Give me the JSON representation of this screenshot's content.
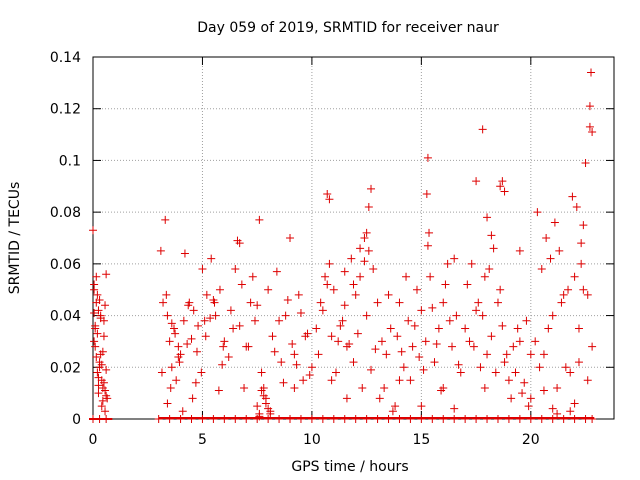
{
  "chart_data": {
    "type": "scatter",
    "title": "Day 059 of 2019, SRMTID for receiver naur",
    "xlabel": "GPS time / hours",
    "ylabel": "SRMTID / TECUs",
    "xlim": [
      0,
      23.8
    ],
    "ylim": [
      0,
      0.14
    ],
    "xticks": [
      0,
      5,
      10,
      15,
      20
    ],
    "xtick_labels": [
      "0",
      "5",
      "10",
      "15",
      "20"
    ],
    "yticks": [
      0,
      0.02,
      0.04,
      0.06,
      0.08,
      0.1,
      0.12,
      0.14
    ],
    "ytick_labels": [
      "0",
      "0.02",
      "0.04",
      "0.06",
      "0.08",
      "0.1",
      "0.12",
      "0.14"
    ],
    "grid": true,
    "marker": "+",
    "color": "#dd0000",
    "series": [
      {
        "name": "SRMTID",
        "x": [
          0.0,
          0.05,
          0.1,
          0.15,
          0.2,
          0.25,
          0.3,
          0.35,
          0.4,
          0.45,
          0.5,
          0.55,
          0.6,
          0.65,
          0.05,
          0.1,
          0.15,
          0.2,
          0.25,
          0.3,
          0.35,
          0.4,
          0.45,
          0.5,
          0.55,
          0.6,
          0.05,
          0.15,
          0.25,
          0.35,
          0.45,
          0.55,
          0.1,
          0.3,
          0.5,
          0.2,
          0.4,
          0.6,
          0.05,
          0.25,
          3.1,
          3.2,
          3.3,
          3.4,
          3.5,
          3.6,
          3.7,
          3.8,
          3.9,
          4.0,
          4.2,
          4.4,
          4.6,
          4.8,
          5.0,
          5.2,
          5.4,
          5.6,
          5.8,
          6.0,
          3.15,
          3.35,
          3.55,
          3.75,
          3.95,
          4.15,
          4.35,
          4.55,
          4.75,
          4.95,
          5.15,
          5.35,
          5.55,
          5.75,
          5.95,
          3.4,
          3.9,
          4.3,
          4.7,
          5.1,
          5.5,
          5.9,
          3.6,
          4.1,
          4.5,
          6.2,
          6.4,
          6.6,
          6.8,
          7.0,
          7.2,
          7.4,
          7.6,
          7.8,
          8.0,
          8.2,
          8.4,
          8.6,
          8.8,
          9.0,
          9.2,
          9.4,
          9.6,
          9.8,
          10.0,
          6.3,
          6.5,
          6.7,
          6.9,
          7.1,
          7.3,
          7.5,
          7.7,
          7.9,
          8.1,
          8.3,
          8.5,
          8.7,
          8.9,
          9.1,
          9.3,
          9.5,
          9.7,
          9.9,
          7.5,
          7.6,
          7.7,
          7.8,
          7.9,
          8.0,
          6.7,
          7.6,
          9.2,
          8.1,
          10.2,
          10.4,
          10.6,
          10.8,
          11.0,
          11.2,
          11.4,
          11.6,
          11.8,
          12.0,
          12.2,
          12.4,
          12.6,
          12.8,
          13.0,
          10.3,
          10.5,
          10.7,
          10.9,
          11.1,
          11.3,
          11.5,
          11.7,
          11.9,
          12.1,
          12.3,
          12.5,
          12.7,
          12.9,
          10.7,
          10.8,
          12.7,
          12.6,
          12.5,
          12.2,
          11.5,
          11.9,
          12.4,
          10.9,
          11.6,
          13.2,
          13.4,
          13.6,
          13.8,
          14.0,
          14.2,
          14.4,
          14.6,
          14.8,
          15.0,
          15.2,
          15.4,
          15.6,
          15.8,
          16.0,
          16.2,
          16.4,
          16.6,
          16.8,
          13.3,
          13.5,
          13.7,
          13.9,
          14.1,
          14.3,
          14.5,
          14.7,
          14.9,
          15.1,
          15.3,
          15.5,
          15.7,
          15.9,
          16.1,
          16.3,
          16.5,
          16.7,
          15.3,
          15.25,
          15.35,
          13.1,
          14.0,
          15.0,
          16.0,
          16.5,
          17.0,
          17.2,
          17.4,
          17.6,
          17.8,
          18.0,
          18.2,
          18.4,
          18.6,
          18.8,
          19.0,
          19.2,
          19.4,
          19.6,
          19.8,
          20.0,
          17.1,
          17.3,
          17.5,
          17.7,
          17.9,
          18.1,
          18.3,
          18.5,
          18.7,
          18.9,
          19.1,
          19.3,
          19.5,
          19.7,
          19.9,
          17.8,
          18.7,
          18.6,
          18.8,
          17.5,
          18.0,
          18.2,
          19.5,
          17.9,
          20.2,
          20.4,
          20.6,
          20.8,
          21.0,
          21.2,
          21.4,
          21.6,
          21.8,
          22.0,
          22.2,
          22.4,
          22.6,
          22.8,
          20.3,
          20.5,
          20.7,
          20.9,
          21.1,
          21.3,
          21.5,
          21.7,
          21.9,
          22.1,
          22.3,
          22.5,
          22.7,
          22.75,
          22.7,
          22.8,
          22.4,
          22.3,
          20.0,
          21.0,
          21.2,
          22.0,
          22.6,
          22.2,
          20.6,
          21.8,
          0.0,
          0.3,
          0.6,
          3.0,
          3.5,
          4.0,
          4.5,
          5.0,
          5.5,
          6.0,
          6.5,
          7.0,
          7.5,
          8.0,
          8.5,
          9.0,
          9.5,
          10.0,
          10.5,
          11.0,
          11.5,
          12.0,
          12.5,
          13.0,
          13.5,
          14.0,
          14.5,
          15.0,
          15.5,
          16.0,
          16.5,
          17.0,
          17.5,
          18.0,
          18.5,
          19.0,
          19.5,
          20.0,
          20.5,
          21.0,
          21.5,
          22.0,
          22.5,
          22.8
        ],
        "y": [
          0.073,
          0.05,
          0.036,
          0.055,
          0.048,
          0.042,
          0.02,
          0.025,
          0.015,
          0.012,
          0.038,
          0.044,
          0.056,
          0.008,
          0.03,
          0.035,
          0.045,
          0.018,
          0.01,
          0.022,
          0.04,
          0.005,
          0.026,
          0.032,
          0.011,
          0.019,
          0.052,
          0.024,
          0.016,
          0.039,
          0.007,
          0.003,
          0.028,
          0.046,
          0.014,
          0.033,
          0.021,
          0.009,
          0.041,
          0.013,
          0.065,
          0.045,
          0.077,
          0.04,
          0.03,
          0.02,
          0.035,
          0.015,
          0.028,
          0.025,
          0.064,
          0.045,
          0.042,
          0.036,
          0.058,
          0.048,
          0.062,
          0.04,
          0.05,
          0.03,
          0.018,
          0.048,
          0.012,
          0.033,
          0.022,
          0.038,
          0.044,
          0.008,
          0.026,
          0.018,
          0.032,
          0.039,
          0.045,
          0.011,
          0.028,
          0.006,
          0.024,
          0.029,
          0.014,
          0.038,
          0.046,
          0.021,
          0.037,
          0.003,
          0.031,
          0.024,
          0.035,
          0.069,
          0.052,
          0.028,
          0.045,
          0.038,
          0.077,
          0.012,
          0.05,
          0.032,
          0.057,
          0.022,
          0.04,
          0.07,
          0.025,
          0.048,
          0.015,
          0.033,
          0.02,
          0.042,
          0.058,
          0.036,
          0.012,
          0.028,
          0.055,
          0.044,
          0.018,
          0.008,
          0.003,
          0.026,
          0.038,
          0.014,
          0.046,
          0.029,
          0.021,
          0.041,
          0.032,
          0.017,
          0.005,
          0.002,
          0.011,
          0.009,
          0.006,
          0.004,
          0.068,
          0.001,
          0.012,
          0.002,
          0.035,
          0.045,
          0.055,
          0.06,
          0.05,
          0.03,
          0.038,
          0.028,
          0.062,
          0.048,
          0.055,
          0.07,
          0.065,
          0.058,
          0.045,
          0.025,
          0.042,
          0.052,
          0.032,
          0.018,
          0.036,
          0.044,
          0.029,
          0.022,
          0.033,
          0.012,
          0.04,
          0.019,
          0.027,
          0.087,
          0.085,
          0.089,
          0.082,
          0.072,
          0.066,
          0.057,
          0.052,
          0.061,
          0.015,
          0.008,
          0.03,
          0.025,
          0.035,
          0.005,
          0.045,
          0.02,
          0.038,
          0.028,
          0.05,
          0.042,
          0.03,
          0.055,
          0.022,
          0.035,
          0.045,
          0.06,
          0.028,
          0.04,
          0.018,
          0.012,
          0.048,
          0.003,
          0.032,
          0.026,
          0.055,
          0.015,
          0.036,
          0.024,
          0.019,
          0.067,
          0.043,
          0.029,
          0.011,
          0.052,
          0.038,
          0.062,
          0.021,
          0.101,
          0.087,
          0.072,
          0.008,
          0.015,
          0.005,
          0.012,
          0.004,
          0.035,
          0.03,
          0.028,
          0.045,
          0.04,
          0.025,
          0.032,
          0.018,
          0.05,
          0.022,
          0.015,
          0.028,
          0.035,
          0.01,
          0.038,
          0.025,
          0.052,
          0.06,
          0.042,
          0.02,
          0.012,
          0.058,
          0.066,
          0.045,
          0.036,
          0.025,
          0.008,
          0.018,
          0.03,
          0.014,
          0.005,
          0.112,
          0.092,
          0.09,
          0.088,
          0.092,
          0.078,
          0.071,
          0.065,
          0.055,
          0.03,
          0.02,
          0.025,
          0.035,
          0.04,
          0.012,
          0.045,
          0.02,
          0.018,
          0.055,
          0.035,
          0.05,
          0.048,
          0.028,
          0.08,
          0.058,
          0.07,
          0.062,
          0.076,
          0.065,
          0.048,
          0.05,
          0.086,
          0.082,
          0.068,
          0.099,
          0.121,
          0.134,
          0.113,
          0.111,
          0.075,
          0.06,
          0.008,
          0.004,
          0.002,
          0.006,
          0.015,
          0.022,
          0.011,
          0.003,
          0.0,
          0.0,
          0.0,
          0.0,
          0.0,
          0.0,
          0.0,
          0.0,
          0.0,
          0.0,
          0.0,
          0.0,
          0.0,
          0.0,
          0.0,
          0.0,
          0.0,
          0.0,
          0.0,
          0.0,
          0.0,
          0.0,
          0.0,
          0.0,
          0.0,
          0.0,
          0.0,
          0.0,
          0.0,
          0.0,
          0.0,
          0.0,
          0.0,
          0.0,
          0.0,
          0.0,
          0.0,
          0.0,
          0.0,
          0.0,
          0.0,
          0.0,
          0.0,
          0.0
        ]
      }
    ]
  }
}
